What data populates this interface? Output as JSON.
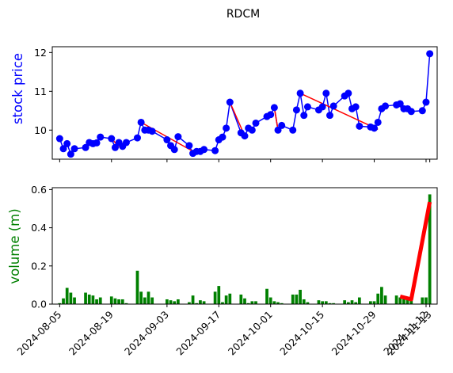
{
  "chart_data": [
    {
      "type": "line",
      "title": "RDCM",
      "ylabel": "stock price",
      "ylabel_color": "#0000ff",
      "ylim": [
        9.25,
        12.15
      ],
      "yticks": [
        10,
        11,
        12
      ],
      "xlim": [
        "2024-08-03",
        "2024-11-15"
      ],
      "xticks": [
        "2024-08-05",
        "2024-08-19",
        "2024-09-03",
        "2024-09-17",
        "2024-10-01",
        "2024-10-15",
        "2024-10-29",
        "2024-11-12",
        "2024-11-13"
      ],
      "series": [
        {
          "color": "#0000ff",
          "marker": "circle",
          "x": [
            "2024-08-05",
            "2024-08-06",
            "2024-08-07",
            "2024-08-08",
            "2024-08-09",
            "2024-08-12",
            "2024-08-13",
            "2024-08-14",
            "2024-08-15",
            "2024-08-16",
            "2024-08-19",
            "2024-08-20",
            "2024-08-21",
            "2024-08-22",
            "2024-08-23",
            "2024-08-26",
            "2024-08-27",
            "2024-08-28",
            "2024-08-29",
            "2024-08-30",
            "2024-09-03",
            "2024-09-04",
            "2024-09-05",
            "2024-09-06",
            "2024-09-09",
            "2024-09-10",
            "2024-09-11",
            "2024-09-12",
            "2024-09-13",
            "2024-09-16",
            "2024-09-17",
            "2024-09-18",
            "2024-09-19",
            "2024-09-20",
            "2024-09-23",
            "2024-09-24",
            "2024-09-25",
            "2024-09-26",
            "2024-09-27",
            "2024-09-30",
            "2024-10-01",
            "2024-10-02",
            "2024-10-03",
            "2024-10-04",
            "2024-10-07",
            "2024-10-08",
            "2024-10-09",
            "2024-10-10",
            "2024-10-11",
            "2024-10-14",
            "2024-10-15",
            "2024-10-16",
            "2024-10-17",
            "2024-10-18",
            "2024-10-21",
            "2024-10-22",
            "2024-10-23",
            "2024-10-24",
            "2024-10-25",
            "2024-10-28",
            "2024-10-29",
            "2024-10-30",
            "2024-10-31",
            "2024-11-01",
            "2024-11-04",
            "2024-11-05",
            "2024-11-06",
            "2024-11-07",
            "2024-11-08",
            "2024-11-11",
            "2024-11-12",
            "2024-11-13"
          ],
          "values": [
            9.78,
            9.52,
            9.65,
            9.38,
            9.52,
            9.55,
            9.68,
            9.65,
            9.67,
            9.82,
            9.78,
            9.55,
            9.68,
            9.58,
            9.68,
            9.8,
            10.2,
            10.0,
            10.0,
            9.97,
            9.75,
            9.6,
            9.5,
            9.83,
            9.6,
            9.4,
            9.45,
            9.45,
            9.5,
            9.47,
            9.75,
            9.82,
            10.05,
            10.72,
            9.93,
            9.85,
            10.05,
            10.0,
            10.18,
            10.35,
            10.4,
            10.58,
            10.0,
            10.12,
            10.0,
            10.52,
            10.95,
            10.38,
            10.6,
            10.52,
            10.6,
            10.95,
            10.38,
            10.62,
            10.88,
            10.95,
            10.55,
            10.6,
            10.1,
            10.08,
            10.05,
            10.2,
            10.55,
            10.62,
            10.65,
            10.68,
            10.55,
            10.55,
            10.48,
            10.5,
            10.72,
            11.97
          ]
        }
      ],
      "trend_lines": [
        {
          "color": "#ff0000",
          "x": [
            "2024-08-19",
            "2024-08-21"
          ],
          "values": [
            9.8,
            9.55
          ]
        },
        {
          "color": "#ff0000",
          "x": [
            "2024-08-27",
            "2024-09-11"
          ],
          "values": [
            10.2,
            9.4
          ]
        },
        {
          "color": "#ff0000",
          "x": [
            "2024-09-20",
            "2024-09-24"
          ],
          "values": [
            10.72,
            9.85
          ]
        },
        {
          "color": "#ff0000",
          "x": [
            "2024-10-02",
            "2024-10-03"
          ],
          "values": [
            10.58,
            10.0
          ]
        },
        {
          "color": "#ff0000",
          "x": [
            "2024-10-09",
            "2024-10-30"
          ],
          "values": [
            10.95,
            10.02
          ]
        },
        {
          "color": "#ff0000",
          "x": [
            "2024-11-05",
            "2024-11-08"
          ],
          "values": [
            10.6,
            10.5
          ]
        }
      ]
    },
    {
      "type": "bar",
      "ylabel": "volume (m)",
      "ylabel_color": "#008000",
      "ylim": [
        0,
        0.61
      ],
      "yticks": [
        0.0,
        0.2,
        0.4,
        0.6
      ],
      "ytick_labels": [
        "0.0",
        "0.2",
        "0.4",
        "0.6"
      ],
      "xlim": [
        "2024-08-03",
        "2024-11-15"
      ],
      "xticks": [
        "2024-08-05",
        "2024-08-19",
        "2024-09-03",
        "2024-09-17",
        "2024-10-01",
        "2024-10-15",
        "2024-10-29",
        "2024-11-12",
        "2024-11-13"
      ],
      "series": [
        {
          "color": "#008000",
          "x": [
            "2024-08-05",
            "2024-08-06",
            "2024-08-07",
            "2024-08-08",
            "2024-08-09",
            "2024-08-12",
            "2024-08-13",
            "2024-08-14",
            "2024-08-15",
            "2024-08-16",
            "2024-08-19",
            "2024-08-20",
            "2024-08-21",
            "2024-08-22",
            "2024-08-23",
            "2024-08-26",
            "2024-08-27",
            "2024-08-28",
            "2024-08-29",
            "2024-08-30",
            "2024-09-03",
            "2024-09-04",
            "2024-09-05",
            "2024-09-06",
            "2024-09-09",
            "2024-09-10",
            "2024-09-11",
            "2024-09-12",
            "2024-09-13",
            "2024-09-16",
            "2024-09-17",
            "2024-09-18",
            "2024-09-19",
            "2024-09-20",
            "2024-09-23",
            "2024-09-24",
            "2024-09-25",
            "2024-09-26",
            "2024-09-27",
            "2024-09-30",
            "2024-10-01",
            "2024-10-02",
            "2024-10-03",
            "2024-10-04",
            "2024-10-07",
            "2024-10-08",
            "2024-10-09",
            "2024-10-10",
            "2024-10-11",
            "2024-10-14",
            "2024-10-15",
            "2024-10-16",
            "2024-10-17",
            "2024-10-18",
            "2024-10-21",
            "2024-10-22",
            "2024-10-23",
            "2024-10-24",
            "2024-10-25",
            "2024-10-28",
            "2024-10-29",
            "2024-10-30",
            "2024-10-31",
            "2024-11-01",
            "2024-11-04",
            "2024-11-05",
            "2024-11-06",
            "2024-11-07",
            "2024-11-08",
            "2024-11-11",
            "2024-11-12",
            "2024-11-13"
          ],
          "values": [
            0.005,
            0.03,
            0.085,
            0.06,
            0.035,
            0.06,
            0.05,
            0.045,
            0.025,
            0.035,
            0.04,
            0.03,
            0.025,
            0.025,
            0.005,
            0.175,
            0.065,
            0.035,
            0.065,
            0.035,
            0.025,
            0.02,
            0.015,
            0.025,
            0.01,
            0.045,
            0.005,
            0.02,
            0.015,
            0.065,
            0.095,
            0.01,
            0.045,
            0.055,
            0.05,
            0.03,
            0.005,
            0.015,
            0.015,
            0.08,
            0.035,
            0.015,
            0.01,
            0.005,
            0.05,
            0.05,
            0.075,
            0.025,
            0.01,
            0.02,
            0.015,
            0.015,
            0.005,
            0.005,
            0.02,
            0.01,
            0.02,
            0.01,
            0.035,
            0.015,
            0.015,
            0.055,
            0.09,
            0.045,
            0.045,
            0.035,
            0.035,
            0.035,
            0.025,
            0.035,
            0.035,
            0.575
          ]
        }
      ],
      "trend_lines": [
        {
          "color": "#ff0000",
          "x": [
            "2024-11-05",
            "2024-11-08",
            "2024-11-13"
          ],
          "values": [
            0.04,
            0.025,
            0.535
          ]
        }
      ]
    }
  ]
}
